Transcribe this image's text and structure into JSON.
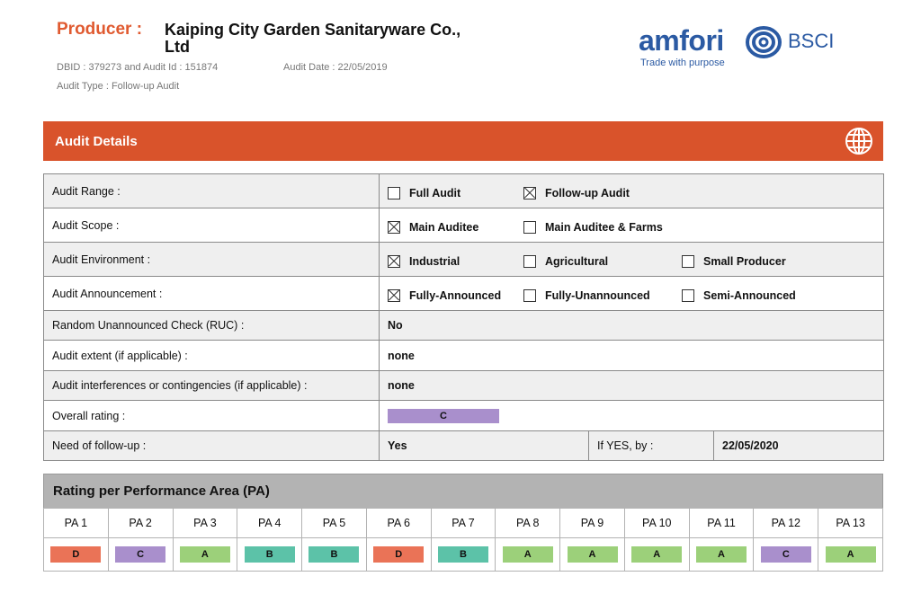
{
  "header": {
    "producer_label": "Producer :",
    "producer_name": "Kaiping City Garden Sanitaryware Co., Ltd",
    "dbid_text": "DBID : 379273 and Audit Id : 151874",
    "audit_date_text": "Audit Date : 22/05/2019",
    "audit_type_text": "Audit Type : Follow-up Audit"
  },
  "logo": {
    "word": "amfori",
    "suffix": "BSCI",
    "tagline": "Trade with purpose",
    "color": "#2b5aa3"
  },
  "section_bar": {
    "title": "Audit Details",
    "icon": "globe-icon",
    "color": "#d9532b"
  },
  "details": {
    "audit_range": {
      "label": "Audit Range :",
      "options": [
        {
          "label": "Full Audit",
          "checked": false
        },
        {
          "label": "Follow-up Audit",
          "checked": true
        }
      ]
    },
    "audit_scope": {
      "label": "Audit Scope :",
      "options": [
        {
          "label": "Main Auditee",
          "checked": true
        },
        {
          "label": "Main Auditee & Farms",
          "checked": false
        }
      ]
    },
    "audit_environment": {
      "label": "Audit Environment :",
      "options": [
        {
          "label": "Industrial",
          "checked": true
        },
        {
          "label": "Agricultural",
          "checked": false
        },
        {
          "label": "Small Producer",
          "checked": false
        }
      ]
    },
    "audit_announcement": {
      "label": "Audit Announcement :",
      "options": [
        {
          "label": "Fully-Announced",
          "checked": true
        },
        {
          "label": "Fully-Unannounced",
          "checked": false
        },
        {
          "label": "Semi-Announced",
          "checked": false
        }
      ]
    },
    "ruc": {
      "label": "Random Unannounced Check (RUC) :",
      "value": "No"
    },
    "extent": {
      "label": "Audit extent (if applicable) :",
      "value": "none"
    },
    "interferences": {
      "label": "Audit interferences or contingencies (if applicable) :",
      "value": "none"
    },
    "overall_rating": {
      "label": "Overall rating :",
      "value": "C",
      "color": "#a98fcc"
    },
    "follow_up": {
      "label": "Need of follow-up :",
      "value": "Yes",
      "by_label": "If YES, by :",
      "by_value": "22/05/2020"
    }
  },
  "pa_section": {
    "title": "Rating per Performance Area (PA)",
    "areas": [
      {
        "label": "PA 1",
        "grade": "D"
      },
      {
        "label": "PA 2",
        "grade": "C"
      },
      {
        "label": "PA 3",
        "grade": "A"
      },
      {
        "label": "PA 4",
        "grade": "B"
      },
      {
        "label": "PA 5",
        "grade": "B"
      },
      {
        "label": "PA 6",
        "grade": "D"
      },
      {
        "label": "PA 7",
        "grade": "B"
      },
      {
        "label": "PA 8",
        "grade": "A"
      },
      {
        "label": "PA 9",
        "grade": "A"
      },
      {
        "label": "PA 10",
        "grade": "A"
      },
      {
        "label": "PA 11",
        "grade": "A"
      },
      {
        "label": "PA 12",
        "grade": "C"
      },
      {
        "label": "PA 13",
        "grade": "A"
      }
    ],
    "grade_colors": {
      "A": "#9cd07a",
      "B": "#5cc2a8",
      "C": "#a98fcc",
      "D": "#ea7357"
    }
  }
}
